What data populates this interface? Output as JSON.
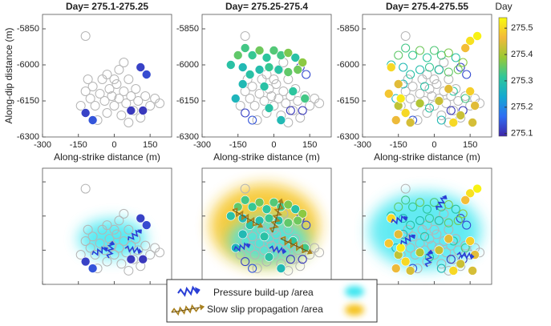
{
  "chart_data": [
    {
      "type": "scatter",
      "title": "Day= 275.1-275.25",
      "window": [
        275.1,
        275.25
      ],
      "xlabel": "Along-strike distance (m)",
      "ylabel": "Along-dip distance (m)",
      "xlim": [
        -300,
        240
      ],
      "ylim": [
        -6300,
        -5790
      ],
      "xticks": [
        -300,
        -150,
        0,
        150
      ],
      "yticks": [
        -6300,
        -6150,
        -6000,
        -5850
      ],
      "x": [
        -120,
        -100,
        -90,
        -80,
        -60,
        -50,
        -40,
        -30,
        -20,
        -10,
        0,
        10,
        20,
        30,
        40,
        50,
        60,
        70,
        80,
        90,
        100,
        110,
        130,
        150,
        170,
        190,
        -140,
        -110,
        20,
        40,
        -120,
        -70,
        60,
        0,
        -30,
        110,
        135,
        120,
        -120,
        -90,
        70
      ],
      "y": [
        -6110,
        -6140,
        -6090,
        -6170,
        -6120,
        -6060,
        -6150,
        -6200,
        -6100,
        -6130,
        -6170,
        -6080,
        -6140,
        -6210,
        -6110,
        -6160,
        -6060,
        -6130,
        -6190,
        -6100,
        -6150,
        -6220,
        -6130,
        -6170,
        -6140,
        -6160,
        -6170,
        -6060,
        -6020,
        -5990,
        -5880,
        -6230,
        -6240,
        -6060,
        -6040,
        -6010,
        -6040,
        -6190,
        -6200,
        -6230,
        -6190
      ],
      "day": [
        null,
        null,
        null,
        null,
        null,
        null,
        null,
        null,
        null,
        null,
        null,
        null,
        null,
        null,
        null,
        null,
        null,
        null,
        null,
        null,
        null,
        null,
        null,
        null,
        null,
        null,
        null,
        null,
        null,
        null,
        null,
        null,
        null,
        null,
        null,
        275.12,
        275.13,
        275.11,
        275.12,
        275.14,
        275.11
      ]
    },
    {
      "type": "scatter",
      "title": "Day= 275.25-275.4",
      "window": [
        275.25,
        275.4
      ],
      "xlabel": "Along-strike distance (m)",
      "xlim": [
        -300,
        240
      ],
      "ylim": [
        -6300,
        -5790
      ],
      "xticks": [
        -300,
        -150,
        0,
        150
      ],
      "yticks": [
        -6300,
        -6150,
        -6000,
        -5850
      ],
      "x": [
        -120,
        -100,
        -90,
        -80,
        -60,
        -50,
        -40,
        -30,
        -20,
        -10,
        0,
        10,
        20,
        30,
        40,
        50,
        60,
        70,
        80,
        90,
        100,
        110,
        130,
        150,
        170,
        190,
        -140,
        -110,
        20,
        40,
        -120,
        -70,
        60,
        0,
        -30,
        110,
        135,
        120,
        -120,
        -90,
        70,
        -180,
        -150,
        -120,
        -90,
        -60,
        -30,
        0,
        30,
        60,
        90,
        120,
        -130,
        -100,
        -60,
        -20,
        20,
        60,
        100,
        -130,
        -160,
        -20,
        30,
        130,
        80,
        -40
      ],
      "y": [
        -6110,
        -6140,
        -6090,
        -6170,
        -6120,
        -6060,
        -6150,
        -6200,
        -6100,
        -6130,
        -6170,
        -6080,
        -6140,
        -6210,
        -6110,
        -6160,
        -6060,
        -6130,
        -6190,
        -6100,
        -6150,
        -6220,
        -6130,
        -6170,
        -6140,
        -6160,
        -6170,
        -6060,
        -6020,
        -5990,
        -5880,
        -6230,
        -6240,
        -6060,
        -6040,
        -6010,
        -6040,
        -6190,
        -6200,
        -6230,
        -6190,
        -6000,
        -5960,
        -5930,
        -5960,
        -5940,
        -5970,
        -5940,
        -5960,
        -5950,
        -5970,
        -5990,
        -6010,
        -6040,
        -6020,
        -6010,
        -6020,
        -6030,
        -6020,
        -6080,
        -6140,
        -6180,
        -6230,
        -6140,
        -6110,
        -6090
      ],
      "day": [
        null,
        null,
        null,
        null,
        null,
        null,
        null,
        null,
        null,
        null,
        null,
        null,
        null,
        null,
        null,
        null,
        null,
        null,
        null,
        null,
        null,
        null,
        null,
        null,
        null,
        null,
        null,
        null,
        null,
        null,
        null,
        null,
        null,
        null,
        null,
        275.12,
        275.13,
        275.11,
        275.12,
        275.14,
        275.11,
        275.3,
        275.35,
        275.33,
        275.32,
        275.36,
        275.31,
        275.34,
        275.33,
        275.37,
        275.3,
        275.38,
        275.28,
        275.3,
        275.29,
        275.32,
        275.3,
        275.35,
        275.36,
        275.28,
        275.27,
        275.3,
        275.28,
        275.33,
        275.31,
        275.3
      ]
    },
    {
      "type": "scatter",
      "title": "Day= 275.4-275.55",
      "window": [
        275.4,
        275.55
      ],
      "xlabel": "Along-strike distance (m)",
      "xlim": [
        -300,
        240
      ],
      "ylim": [
        -6300,
        -5790
      ],
      "xticks": [
        -300,
        -150,
        0,
        150
      ],
      "yticks": [
        -6300,
        -6150,
        -6000,
        -5850
      ],
      "x": [
        -120,
        -100,
        -90,
        -80,
        -60,
        -50,
        -40,
        -30,
        -20,
        -10,
        0,
        10,
        20,
        30,
        40,
        50,
        60,
        70,
        80,
        90,
        100,
        110,
        130,
        150,
        170,
        190,
        -140,
        -110,
        20,
        40,
        -120,
        -70,
        60,
        0,
        -30,
        110,
        135,
        120,
        -120,
        -90,
        70,
        -180,
        -150,
        -120,
        -90,
        -60,
        -30,
        0,
        30,
        60,
        90,
        120,
        -130,
        -100,
        -60,
        -20,
        20,
        60,
        100,
        -130,
        -160,
        -20,
        30,
        130,
        80,
        -40,
        -180,
        -150,
        -190,
        -150,
        -120,
        -160,
        -100,
        -140,
        150,
        180,
        130,
        150,
        170,
        110,
        80,
        160,
        -60,
        20,
        60
      ],
      "y": [
        -6110,
        -6140,
        -6090,
        -6170,
        -6120,
        -6060,
        -6150,
        -6200,
        -6100,
        -6130,
        -6170,
        -6080,
        -6140,
        -6210,
        -6110,
        -6160,
        -6060,
        -6130,
        -6190,
        -6100,
        -6150,
        -6220,
        -6130,
        -6170,
        -6140,
        -6160,
        -6170,
        -6060,
        -6020,
        -5990,
        -5880,
        -6230,
        -6240,
        -6060,
        -6040,
        -6010,
        -6040,
        -6190,
        -6200,
        -6230,
        -6190,
        -6000,
        -5960,
        -5930,
        -5960,
        -5940,
        -5970,
        -5940,
        -5960,
        -5950,
        -5970,
        -5990,
        -6010,
        -6040,
        -6020,
        -6010,
        -6020,
        -6030,
        -6020,
        -6080,
        -6140,
        -6180,
        -6230,
        -6140,
        -6110,
        -6090,
        -6010,
        -6080,
        -6120,
        -6170,
        -6200,
        -6230,
        -6240,
        -6140,
        -5900,
        -5880,
        -5930,
        -6110,
        -6170,
        -6210,
        -6240,
        -6240,
        -6160,
        -6150,
        -6100
      ],
      "day": [
        null,
        null,
        null,
        null,
        null,
        null,
        null,
        null,
        null,
        null,
        null,
        null,
        null,
        null,
        null,
        null,
        null,
        null,
        null,
        null,
        null,
        null,
        null,
        null,
        null,
        null,
        null,
        null,
        null,
        null,
        null,
        null,
        null,
        null,
        null,
        275.12,
        275.13,
        275.11,
        275.12,
        275.14,
        275.11,
        275.3,
        275.35,
        275.33,
        275.32,
        275.36,
        275.31,
        275.34,
        275.33,
        275.37,
        275.3,
        275.38,
        275.28,
        275.3,
        275.29,
        275.32,
        275.3,
        275.35,
        275.36,
        275.28,
        275.27,
        275.3,
        275.28,
        275.33,
        275.31,
        275.3,
        275.5,
        275.45,
        275.48,
        275.42,
        275.5,
        275.46,
        275.44,
        275.52,
        275.51,
        275.53,
        275.47,
        275.49,
        275.45,
        275.43,
        275.5,
        275.44,
        275.41,
        275.43,
        275.45
      ]
    }
  ],
  "colorbar": {
    "label": "Day",
    "ylim": [
      275.09,
      275.54
    ],
    "yticks": [
      275.1,
      275.2,
      275.3,
      275.4,
      275.5
    ],
    "colors": [
      "#3e26a8",
      "#2f6df3",
      "#14a9d1",
      "#2fc79a",
      "#9ac934",
      "#f3b93a",
      "#f9fb0e"
    ]
  },
  "legend": {
    "items": [
      "Pressure build-up /area",
      "Slow slip propagation /area"
    ]
  }
}
